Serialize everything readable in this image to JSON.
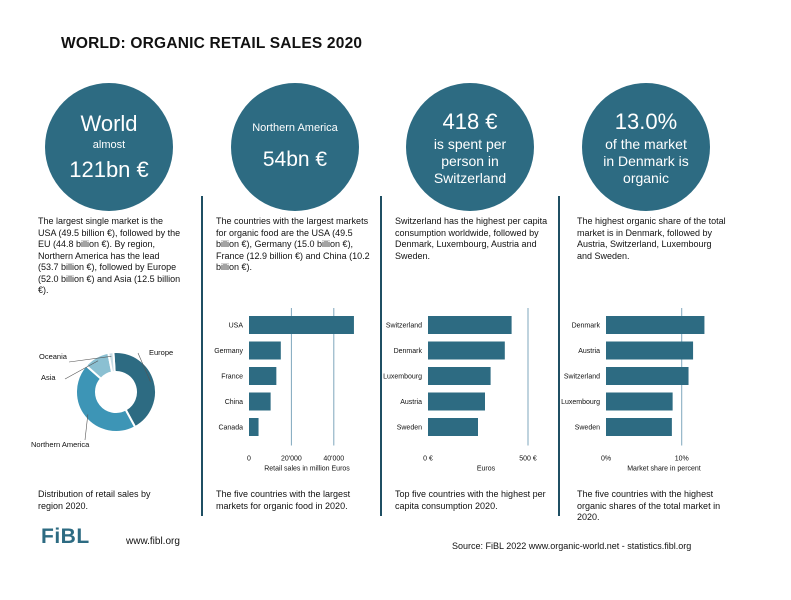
{
  "title": "WORLD: ORGANIC RETAIL SALES  2020",
  "circles": [
    {
      "lines": [
        "World",
        "almost",
        "121bn €"
      ]
    },
    {
      "lines": [
        "Northern America",
        "54bn €"
      ]
    },
    {
      "lines": [
        "418 €",
        "is spent per",
        "person in",
        "Switzerland"
      ]
    },
    {
      "lines": [
        "13.0%",
        "of the market",
        "in Denmark is",
        "organic"
      ]
    }
  ],
  "descriptions": [
    "The largest single market is the USA (49.5 billion €), followed by the EU (44.8 billion €). By region, Northern America has the lead (53.7 billion €), followed by Europe (52.0 billion €) and Asia (12.5 billion €).",
    "The countries with the largest markets for organic food are the USA (49.5 billion €), Germany (15.0 billion €), France (12.9 billion €) and China (10.2 billion €).",
    "Switzerland has the highest per capita consumption worldwide, followed by Denmark, Luxembourg, Austria and Sweden.",
    "The highest organic share of the total market is in Denmark, followed by Austria, Switzerland, Luxembourg and Sweden."
  ],
  "captions": [
    "Distribution of retail sales by region 2020.",
    "The five countries with the largest markets for organic food in 2020.",
    "Top five countries with the highest per capita consumption 2020.",
    "The five countries with the highest organic shares of the total market in 2020."
  ],
  "footer": {
    "logo": "FiBL",
    "website": "www.fibl.org",
    "source": "Source: FiBL 2022 www.organic-world.net - statistics.fibl.org"
  },
  "colors": {
    "primary": "#2d6b82",
    "bar": "#2d6b82",
    "donut_europe": "#2d6b82",
    "donut_namerica": "#3d95b6",
    "donut_asia": "#8bc0d2",
    "donut_oceania": "#c9dde5",
    "gridline": "#7fa7bd"
  },
  "chart_data": [
    {
      "type": "pie",
      "donut": true,
      "categories": [
        "Europe",
        "Northern America",
        "Asia",
        "Oceania"
      ],
      "values": [
        52.0,
        53.7,
        12.5,
        2.5
      ]
    },
    {
      "type": "bar",
      "orientation": "horizontal",
      "categories": [
        "USA",
        "Germany",
        "France",
        "China",
        "Canada"
      ],
      "values": [
        49500,
        15000,
        12900,
        10200,
        4500
      ],
      "xlabel": "Retail sales in million Euros",
      "xticks": [
        0,
        20000,
        40000
      ],
      "xtick_labels": [
        "0",
        "20'000",
        "40'000"
      ],
      "xlim": [
        0,
        50000
      ],
      "grid": true
    },
    {
      "type": "bar",
      "orientation": "horizontal",
      "categories": [
        "Switzerland",
        "Denmark",
        "Luxembourg",
        "Austria",
        "Sweden"
      ],
      "values": [
        418,
        384,
        313,
        285,
        250
      ],
      "xlabel": "Euros",
      "xticks": [
        0,
        500
      ],
      "xtick_labels": [
        "0 €",
        "500 €"
      ],
      "xlim": [
        0,
        530
      ],
      "grid": true
    },
    {
      "type": "bar",
      "orientation": "horizontal",
      "categories": [
        "Denmark",
        "Austria",
        "Switzerland",
        "Luxembourg",
        "Sweden"
      ],
      "values": [
        13.0,
        11.5,
        10.9,
        8.8,
        8.7
      ],
      "xlabel": "Market share in percent",
      "xticks": [
        0,
        10
      ],
      "xtick_labels": [
        "0%",
        "10%"
      ],
      "xlim": [
        0,
        14
      ],
      "grid": true
    }
  ]
}
